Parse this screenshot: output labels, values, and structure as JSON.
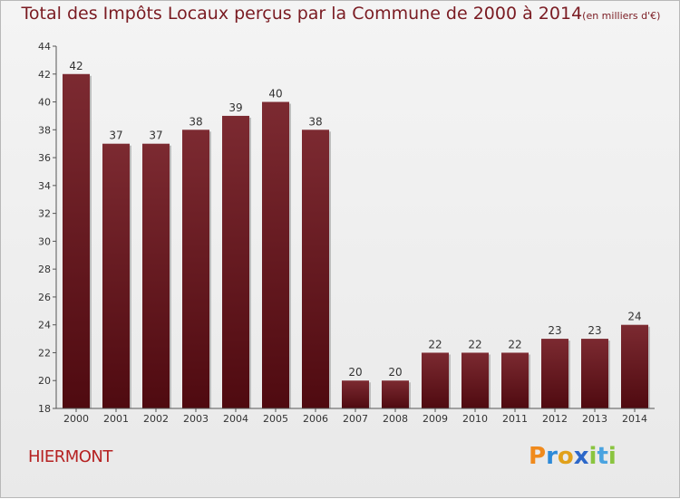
{
  "title": {
    "main": "Total des Impôts Locaux perçus par la Commune de 2000 à 2014",
    "unit": "(en milliers d'€)"
  },
  "commune": "HIERMONT",
  "logo": {
    "letters": [
      "P",
      "r",
      "o",
      "x",
      "i",
      "t",
      "i"
    ]
  },
  "colors": {
    "bar": "#6e1a21",
    "title": "#7a1b22",
    "commune": "#b62222"
  },
  "chart_data": {
    "type": "bar",
    "categories": [
      "2000",
      "2001",
      "2002",
      "2003",
      "2004",
      "2005",
      "2006",
      "2007",
      "2008",
      "2009",
      "2010",
      "2011",
      "2012",
      "2013",
      "2014"
    ],
    "values": [
      42,
      37,
      37,
      38,
      39,
      40,
      38,
      20,
      20,
      22,
      22,
      22,
      23,
      23,
      24
    ],
    "title": "Total des Impôts Locaux perçus par la Commune de 2000 à 2014",
    "ylim": [
      18,
      44
    ],
    "yticks": [
      18,
      20,
      22,
      24,
      26,
      28,
      30,
      32,
      34,
      36,
      38,
      40,
      42,
      44
    ],
    "grid": false,
    "legend": "none"
  }
}
